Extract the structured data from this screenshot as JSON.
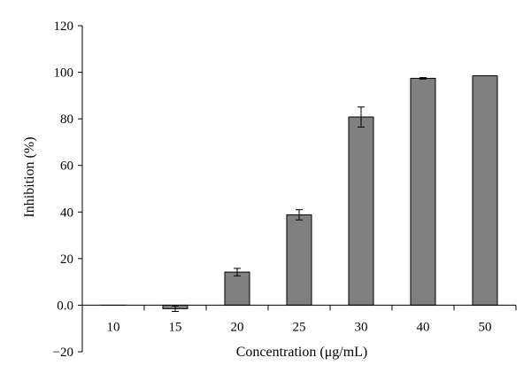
{
  "chart_data": {
    "type": "bar",
    "title": "",
    "xlabel": "Concentration (μg/mL)",
    "ylabel": "Inhibition (%)",
    "categories": [
      "10",
      "15",
      "20",
      "25",
      "30",
      "40",
      "50"
    ],
    "series": [
      {
        "values": [
          0.0,
          -1.5,
          14.2,
          38.8,
          80.8,
          97.4,
          98.5
        ],
        "error": [
          0.0,
          1.2,
          1.6,
          2.2,
          4.3,
          0.3,
          0.0
        ]
      }
    ],
    "ylim": [
      -20,
      120
    ],
    "yticks": [
      {
        "value": -20,
        "label": "−20"
      },
      {
        "value": 0,
        "label": "0.0"
      },
      {
        "value": 20,
        "label": "20"
      },
      {
        "value": 40,
        "label": "40"
      },
      {
        "value": 60,
        "label": "60"
      },
      {
        "value": 80,
        "label": "80"
      },
      {
        "value": 100,
        "label": "100"
      },
      {
        "value": 120,
        "label": "120"
      }
    ],
    "grid": false,
    "legend": "none",
    "colors": {
      "bar_fill": "#808080",
      "bar_stroke": "#000000",
      "axis": "#000000"
    }
  }
}
